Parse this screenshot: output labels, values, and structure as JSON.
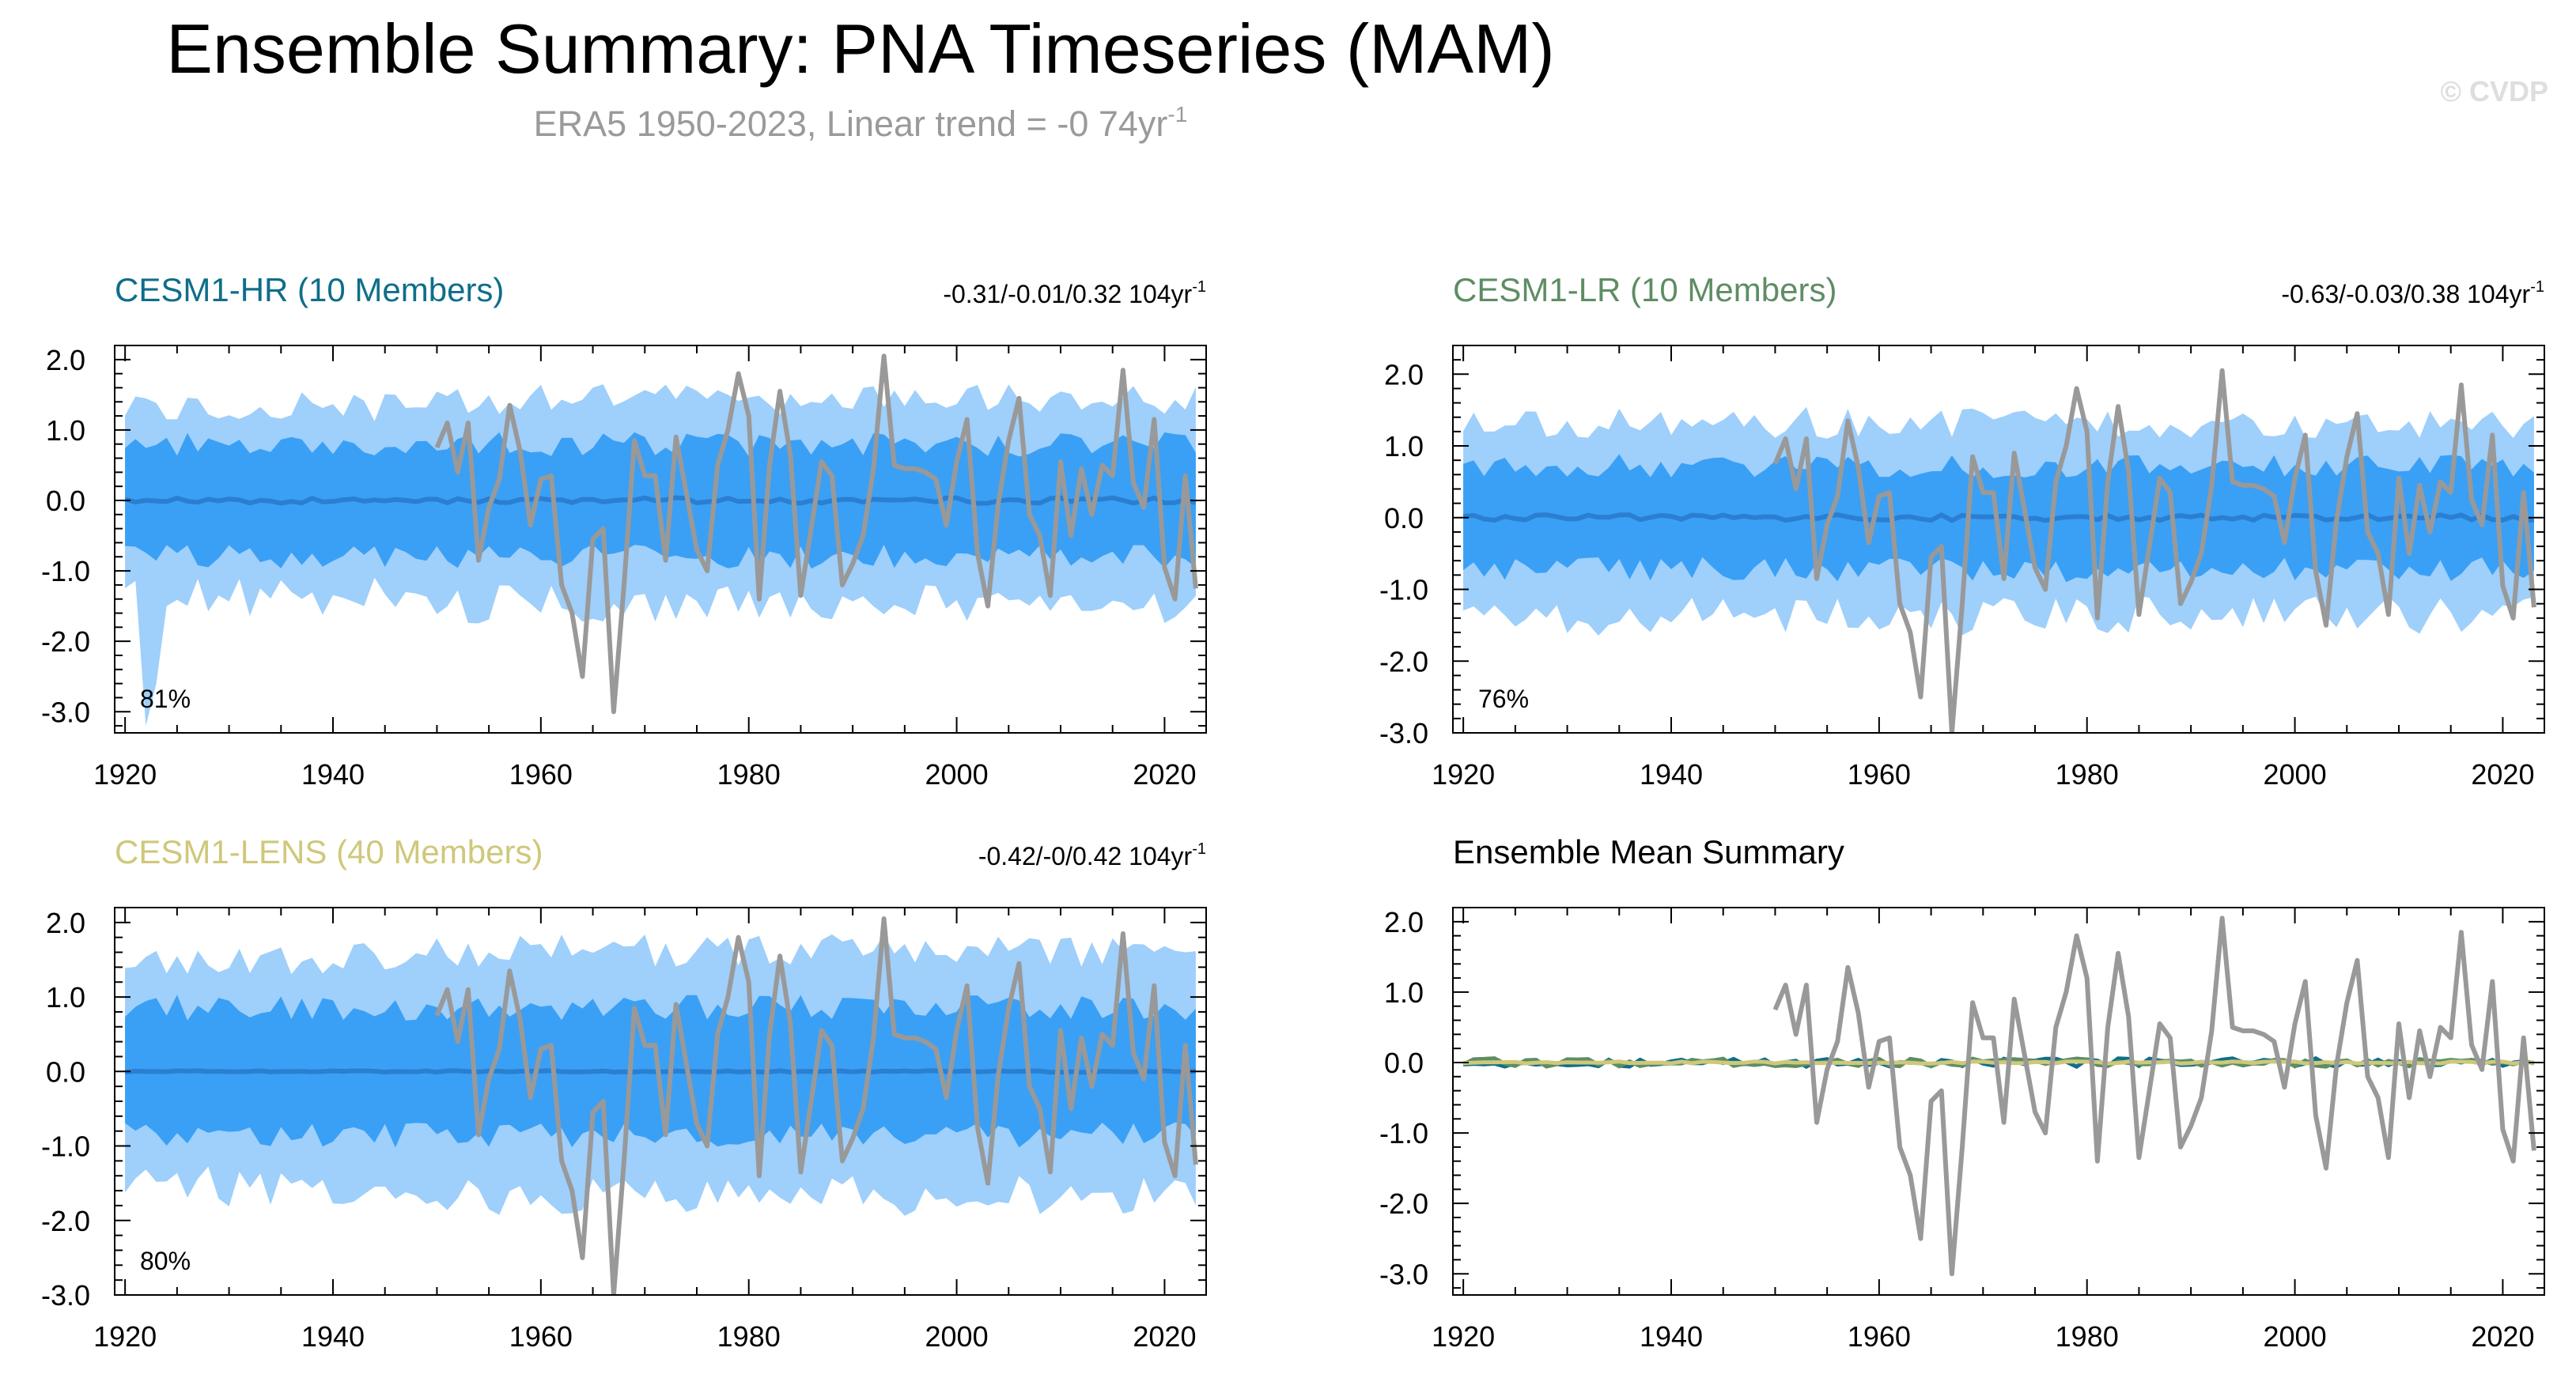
{
  "title": "Ensemble Summary: PNA Timeseries (MAM)",
  "subtitle": {
    "text": "ERA5 1950-2023, Linear trend = -0 74yr",
    "sup": "-1"
  },
  "watermark": "© CVDP",
  "colors": {
    "outer_band": "#9fcffb",
    "inner_band": "#3aa0f5",
    "ens_mean": "#2b7fd0",
    "obs": "#999999",
    "hr": "#0e6e8a",
    "lr": "#5e8d64",
    "lens": "#cfc87a"
  },
  "chart_data": [
    {
      "id": "hr",
      "type": "area",
      "title": "CESM1-HR (10 Members)",
      "title_color": "#0e6e8a",
      "trend": {
        "text": "-0.31/-0.01/0.32 104yr",
        "sup": "-1"
      },
      "pct": "81%",
      "xlim": [
        1919,
        2024
      ],
      "ylim": [
        -3.3,
        2.2
      ],
      "xticks": [
        "1920",
        "1940",
        "1960",
        "1980",
        "2000",
        "2020"
      ],
      "yticks": [
        "2.0",
        "1.0",
        "0.0",
        "-1.0",
        "-2.0",
        "-3.0"
      ],
      "outer_amp": 1.05,
      "inner_amp": 0.62,
      "mean_amp": 0.04,
      "seed": 11,
      "dip_1922": true
    },
    {
      "id": "lr",
      "type": "area",
      "title": "CESM1-LR (10 Members)",
      "title_color": "#5e8d64",
      "trend": {
        "text": "-0.63/-0.03/0.38 104yr",
        "sup": "-1"
      },
      "pct": "76%",
      "xlim": [
        1919,
        2024
      ],
      "ylim": [
        -3.0,
        2.4
      ],
      "xticks": [
        "1920",
        "1940",
        "1960",
        "1980",
        "2000",
        "2020"
      ],
      "yticks": [
        "2.0",
        "1.0",
        "0.0",
        "-1.0",
        "-2.0",
        "-3.0"
      ],
      "outer_amp": 1.05,
      "inner_amp": 0.55,
      "mean_amp": 0.04,
      "seed": 23,
      "dip_1922": false
    },
    {
      "id": "lens",
      "type": "area",
      "title": "CESM1-LENS (40 Members)",
      "title_color": "#cfc87a",
      "trend": {
        "text": "-0.42/-0/0.42 104yr",
        "sup": "-1"
      },
      "pct": "80%",
      "xlim": [
        1919,
        2024
      ],
      "ylim": [
        -3.0,
        2.2
      ],
      "xticks": [
        "1920",
        "1940",
        "1960",
        "1980",
        "2000",
        "2020"
      ],
      "yticks": [
        "2.0",
        "1.0",
        "0.0",
        "-1.0",
        "-2.0",
        "-3.0"
      ],
      "outer_amp": 1.25,
      "inner_amp": 0.68,
      "mean_amp": 0.01,
      "seed": 37,
      "dip_1922": false
    },
    {
      "id": "mean",
      "type": "line",
      "title": "Ensemble Mean Summary",
      "title_color": "#000000",
      "xlim": [
        1919,
        2024
      ],
      "ylim": [
        -3.3,
        2.2
      ],
      "xticks": [
        "1920",
        "1940",
        "1960",
        "1980",
        "2000",
        "2020"
      ],
      "yticks": [
        "2.0",
        "1.0",
        "0.0",
        "-1.0",
        "-2.0",
        "-3.0"
      ]
    }
  ],
  "obs_series": {
    "name": "ERA5",
    "start_year": 1950,
    "values": [
      0.75,
      1.1,
      0.4,
      1.1,
      -0.85,
      -0.1,
      0.3,
      1.35,
      0.7,
      -0.35,
      0.3,
      0.35,
      -1.2,
      -1.6,
      -2.5,
      -0.55,
      -0.4,
      -3.0,
      -1.2,
      0.85,
      0.35,
      0.35,
      -0.85,
      0.9,
      0.1,
      -0.7,
      -1.0,
      0.5,
      1.0,
      1.8,
      1.2,
      -1.4,
      0.5,
      1.55,
      0.65,
      -1.35,
      -0.4,
      0.55,
      0.35,
      -1.2,
      -0.9,
      -0.5,
      0.45,
      2.05,
      0.5,
      0.45,
      0.45,
      0.4,
      0.3,
      -0.35,
      0.55,
      1.15,
      -0.75,
      -1.5,
      -0.05,
      0.85,
      1.45,
      -0.2,
      -0.5,
      -1.35,
      0.55,
      -0.5,
      0.45,
      -0.2,
      0.5,
      0.35,
      1.85,
      0.25,
      -0.1,
      1.15,
      -0.95,
      -1.4,
      0.35,
      -1.25
    ]
  }
}
